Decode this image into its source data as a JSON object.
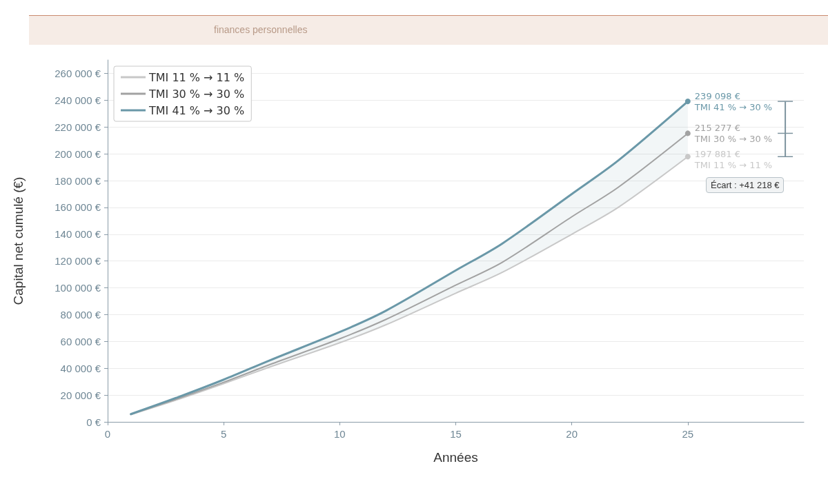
{
  "chart_data": {
    "type": "line",
    "subtitle": "finances personnelles",
    "xlabel": "Années",
    "ylabel": "Capital net cumulé (€)",
    "x": [
      1,
      3,
      5,
      7,
      10,
      12,
      15,
      17,
      20,
      22,
      25
    ],
    "series": [
      {
        "name": "TMI 11 % → 11 %",
        "color": "#c8c8c8",
        "values": [
          5400,
          16500,
          28500,
          41000,
          59000,
          72500,
          96000,
          111500,
          140000,
          160000,
          197881
        ],
        "value_labels": [
          null,
          null,
          null,
          null,
          null,
          null,
          null,
          null,
          null,
          null,
          "197 881 €"
        ]
      },
      {
        "name": "TMI 30 % → 30 %",
        "color": "#a2a2a2",
        "values": [
          5600,
          17200,
          29500,
          42800,
          62000,
          76500,
          102000,
          119000,
          153000,
          175000,
          215277
        ],
        "value_labels": [
          null,
          null,
          null,
          null,
          null,
          null,
          null,
          null,
          null,
          null,
          "215 277 €"
        ],
        "lower": [
          5400,
          16500,
          28500,
          41000,
          59000,
          72500,
          96000,
          111500,
          140000,
          160000,
          197881
        ],
        "upper": [
          5800,
          18200,
          31500,
          46000,
          67000,
          83000,
          113000,
          133000,
          170000,
          195000,
          239098
        ]
      },
      {
        "name": "TMI 41 % → 30 %",
        "color": "#6a98a8",
        "values": [
          5800,
          18200,
          31500,
          46000,
          67000,
          83000,
          113000,
          133000,
          170000,
          195000,
          239098
        ],
        "value_labels": [
          null,
          null,
          null,
          null,
          null,
          null,
          null,
          null,
          null,
          null,
          "239 098 €"
        ]
      }
    ],
    "annotations": [
      "Écart : +41 218 €"
    ],
    "xlim": [
      0,
      30
    ],
    "xticks": [
      0,
      5,
      10,
      15,
      20,
      25
    ],
    "ylim": [
      0,
      270000
    ],
    "yticks": [
      {
        "value": 0,
        "label": "0 €"
      },
      {
        "value": 20000,
        "label": "20 000 €"
      },
      {
        "value": 40000,
        "label": "40 000 €"
      },
      {
        "value": 60000,
        "label": "60 000 €"
      },
      {
        "value": 80000,
        "label": "80 000 €"
      },
      {
        "value": 100000,
        "label": "100 000 €"
      },
      {
        "value": 120000,
        "label": "120 000 €"
      },
      {
        "value": 140000,
        "label": "140 000 €"
      },
      {
        "value": 160000,
        "label": "160 000 €"
      },
      {
        "value": 180000,
        "label": "180 000 €"
      },
      {
        "value": 200000,
        "label": "200 000 €"
      },
      {
        "value": 220000,
        "label": "220 000 €"
      },
      {
        "value": 240000,
        "label": "240 000 €"
      },
      {
        "value": 260000,
        "label": "260 000 €"
      }
    ],
    "grid": "y",
    "legend": "top left",
    "marker": "none",
    "line_style": "solid"
  }
}
